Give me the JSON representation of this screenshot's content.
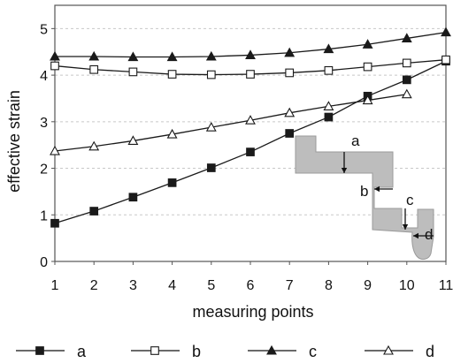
{
  "chart_data": {
    "type": "line",
    "title": "",
    "xlabel": "measuring points",
    "ylabel": "effective strain",
    "x": [
      1,
      2,
      3,
      4,
      5,
      6,
      7,
      8,
      9,
      10,
      11
    ],
    "xlim": [
      1,
      11
    ],
    "ylim": [
      0,
      5.5
    ],
    "x_ticks": [
      1,
      2,
      3,
      4,
      5,
      6,
      7,
      8,
      9,
      10,
      11
    ],
    "y_ticks": [
      0,
      1,
      2,
      3,
      4,
      5
    ],
    "grid": "horizontal dashed",
    "legend_position": "bottom",
    "series": [
      {
        "name": "a",
        "marker": "square-filled",
        "color": "#1a1a1a",
        "values": [
          0.82,
          1.08,
          1.38,
          1.69,
          2.01,
          2.35,
          2.75,
          3.1,
          3.55,
          3.9,
          4.3
        ]
      },
      {
        "name": "b",
        "marker": "square-open",
        "color": "#1a1a1a",
        "values": [
          4.2,
          4.12,
          4.07,
          4.02,
          4.01,
          4.02,
          4.05,
          4.1,
          4.18,
          4.26,
          4.33
        ]
      },
      {
        "name": "c",
        "marker": "triangle-filled",
        "color": "#1a1a1a",
        "values": [
          4.4,
          4.4,
          4.39,
          4.39,
          4.4,
          4.43,
          4.48,
          4.56,
          4.66,
          4.79,
          4.92
        ]
      },
      {
        "name": "d",
        "marker": "triangle-open",
        "color": "#1a1a1a",
        "values": [
          2.37,
          2.47,
          2.59,
          2.73,
          2.88,
          3.03,
          3.19,
          3.33,
          3.46,
          3.59,
          null
        ]
      }
    ],
    "inset": {
      "shape_fill": "#bdbdbd",
      "labels": [
        "a",
        "b",
        "c",
        "d"
      ]
    }
  }
}
